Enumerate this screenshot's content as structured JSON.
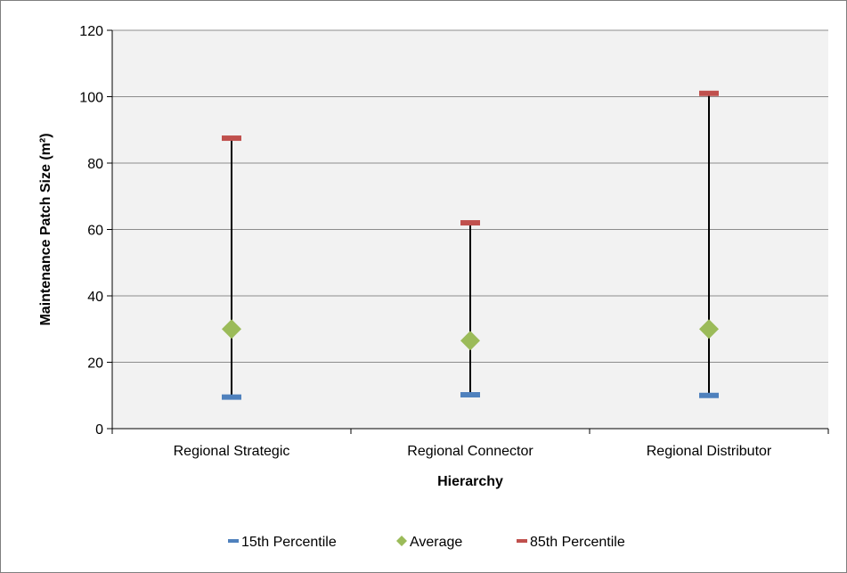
{
  "chart_data": {
    "type": "scatter",
    "categories": [
      "Regional Strategic",
      "Regional Connector",
      "Regional Distributor"
    ],
    "series": [
      {
        "name": "15th Percentile",
        "values": [
          9.5,
          10.2,
          10.0
        ],
        "color": "#4f81bd",
        "marker": "dash"
      },
      {
        "name": "Average",
        "values": [
          30,
          26.5,
          30
        ],
        "color": "#9bbb59",
        "marker": "diamond"
      },
      {
        "name": "85th Percentile",
        "values": [
          87.5,
          62,
          101
        ],
        "color": "#c0504d",
        "marker": "dash"
      }
    ],
    "xlabel": "Hierarchy",
    "ylabel": "Maintenance Patch Size (m²)",
    "ylim": [
      0,
      120
    ],
    "yticks": [
      "0",
      "20",
      "40",
      "60",
      "80",
      "100",
      "120"
    ],
    "grid": true,
    "legend_position": "bottom",
    "plot_background": "#f2f2f2"
  }
}
